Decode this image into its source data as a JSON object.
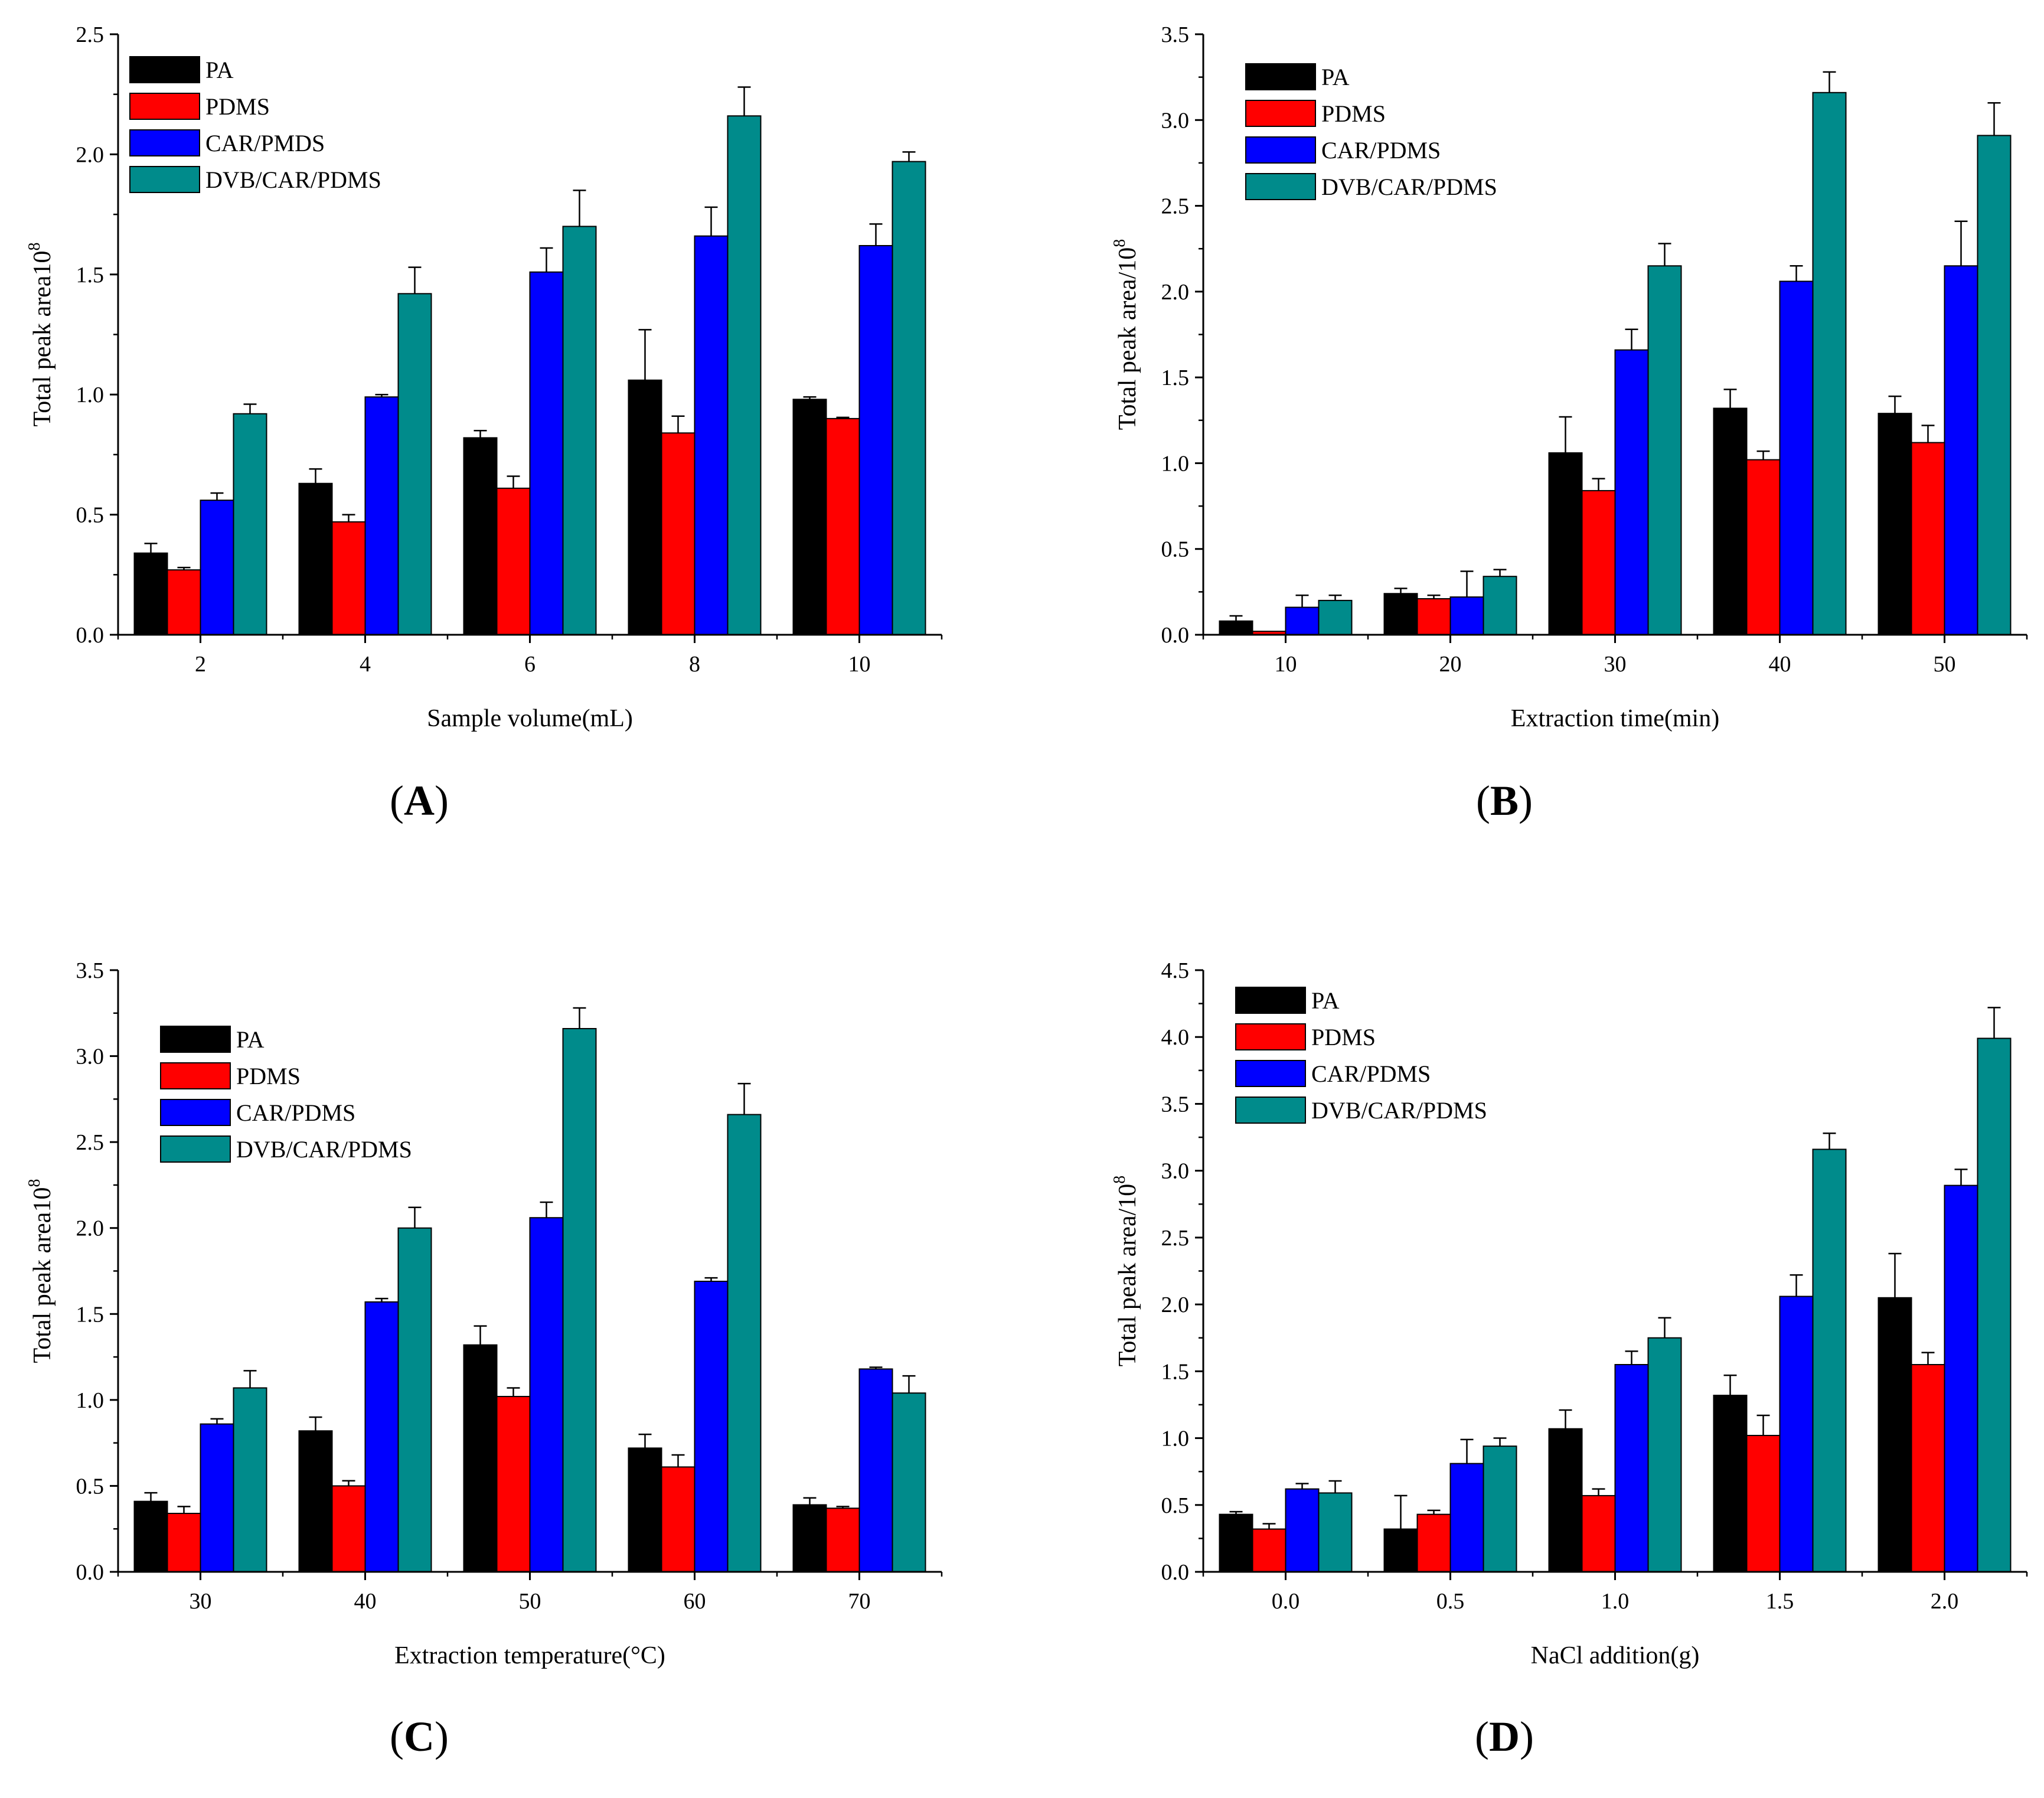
{
  "chart_data": [
    {
      "panel": "A",
      "type": "bar",
      "title": "",
      "xlabel": "Sample volume(mL)",
      "ylabel": "Total peak area10",
      "ylabel_exponent": "8",
      "ylim": [
        0,
        2.5
      ],
      "yticks": [
        "0.0",
        "0.5",
        "1.0",
        "1.5",
        "2.0",
        "2.5"
      ],
      "categories": [
        "2",
        "4",
        "6",
        "8",
        "10"
      ],
      "legend": "top-left",
      "series": [
        {
          "name": "PA",
          "color": "#000000",
          "values": [
            0.34,
            0.63,
            0.82,
            1.06,
            0.98
          ],
          "errors": [
            0.04,
            0.06,
            0.03,
            0.21,
            0.01
          ]
        },
        {
          "name": "PDMS",
          "color": "#ff0000",
          "values": [
            0.27,
            0.47,
            0.61,
            0.84,
            0.9
          ],
          "errors": [
            0.01,
            0.03,
            0.05,
            0.07,
            0.005
          ]
        },
        {
          "name": "CAR/PMDS",
          "color": "#0000ff",
          "values": [
            0.56,
            0.99,
            1.51,
            1.66,
            1.62
          ],
          "errors": [
            0.03,
            0.01,
            0.1,
            0.12,
            0.09
          ]
        },
        {
          "name": "DVB/CAR/PDMS",
          "color": "#008b8b",
          "values": [
            0.92,
            1.42,
            1.7,
            2.16,
            1.97
          ],
          "errors": [
            0.04,
            0.11,
            0.15,
            0.12,
            0.04
          ]
        }
      ]
    },
    {
      "panel": "B",
      "type": "bar",
      "title": "",
      "xlabel": "Extraction time(min)",
      "ylabel": "Total peak area/10",
      "ylabel_exponent": "8",
      "ylim": [
        0,
        3.5
      ],
      "yticks": [
        "0.0",
        "0.5",
        "1.0",
        "1.5",
        "2.0",
        "2.5",
        "3.0",
        "3.5"
      ],
      "categories": [
        "10",
        "20",
        "30",
        "40",
        "50"
      ],
      "legend": "top-left",
      "series": [
        {
          "name": "PA",
          "color": "#000000",
          "values": [
            0.08,
            0.24,
            1.06,
            1.32,
            1.29
          ],
          "errors": [
            0.03,
            0.03,
            0.21,
            0.11,
            0.1
          ]
        },
        {
          "name": "PDMS",
          "color": "#ff0000",
          "values": [
            0.02,
            0.21,
            0.84,
            1.02,
            1.12
          ],
          "errors": [
            0.0,
            0.02,
            0.07,
            0.05,
            0.1
          ]
        },
        {
          "name": "CAR/PDMS",
          "color": "#0000ff",
          "values": [
            0.16,
            0.22,
            1.66,
            2.06,
            2.15
          ],
          "errors": [
            0.07,
            0.15,
            0.12,
            0.09,
            0.26
          ]
        },
        {
          "name": "DVB/CAR/PDMS",
          "color": "#008b8b",
          "values": [
            0.2,
            0.34,
            2.15,
            3.16,
            2.91
          ],
          "errors": [
            0.03,
            0.04,
            0.13,
            0.12,
            0.19
          ]
        }
      ]
    },
    {
      "panel": "C",
      "type": "bar",
      "title": "",
      "xlabel": "Extraction temperature(°C)",
      "ylabel": "Total peak area10",
      "ylabel_exponent": "8",
      "ylim": [
        0,
        3.5
      ],
      "yticks": [
        "0.0",
        "0.5",
        "1.0",
        "1.5",
        "2.0",
        "2.5",
        "3.0",
        "3.5"
      ],
      "categories": [
        "30",
        "40",
        "50",
        "60",
        "70"
      ],
      "legend": "top-left",
      "series": [
        {
          "name": "PA",
          "color": "#000000",
          "values": [
            0.41,
            0.82,
            1.32,
            0.72,
            0.39
          ],
          "errors": [
            0.05,
            0.08,
            0.11,
            0.08,
            0.04
          ]
        },
        {
          "name": "PDMS",
          "color": "#ff0000",
          "values": [
            0.34,
            0.5,
            1.02,
            0.61,
            0.37
          ],
          "errors": [
            0.04,
            0.03,
            0.05,
            0.07,
            0.01
          ]
        },
        {
          "name": "CAR/PDMS",
          "color": "#0000ff",
          "values": [
            0.86,
            1.57,
            2.06,
            1.69,
            1.18
          ],
          "errors": [
            0.03,
            0.02,
            0.09,
            0.02,
            0.01
          ]
        },
        {
          "name": "DVB/CAR/PDMS",
          "color": "#008b8b",
          "values": [
            1.07,
            2.0,
            3.16,
            2.66,
            1.04
          ],
          "errors": [
            0.1,
            0.12,
            0.12,
            0.18,
            0.1
          ]
        }
      ]
    },
    {
      "panel": "D",
      "type": "bar",
      "title": "",
      "xlabel": "NaCl addition(g)",
      "ylabel": "Total peak area/10",
      "ylabel_exponent": "8",
      "ylim": [
        0,
        4.5
      ],
      "yticks": [
        "0.0",
        "0.5",
        "1.0",
        "1.5",
        "2.0",
        "2.5",
        "3.0",
        "3.5",
        "4.0",
        "4.5"
      ],
      "categories": [
        "0.0",
        "0.5",
        "1.0",
        "1.5",
        "2.0"
      ],
      "legend": "top-left",
      "series": [
        {
          "name": "PA",
          "color": "#000000",
          "values": [
            0.43,
            0.32,
            1.07,
            1.32,
            2.05
          ],
          "errors": [
            0.02,
            0.25,
            0.14,
            0.15,
            0.33
          ]
        },
        {
          "name": "PDMS",
          "color": "#ff0000",
          "values": [
            0.32,
            0.43,
            0.57,
            1.02,
            1.55
          ],
          "errors": [
            0.04,
            0.03,
            0.05,
            0.15,
            0.09
          ]
        },
        {
          "name": "CAR/PDMS",
          "color": "#0000ff",
          "values": [
            0.62,
            0.81,
            1.55,
            2.06,
            2.89
          ],
          "errors": [
            0.04,
            0.18,
            0.1,
            0.16,
            0.12
          ]
        },
        {
          "name": "DVB/CAR/PDMS",
          "color": "#008b8b",
          "values": [
            0.59,
            0.94,
            1.75,
            3.16,
            3.99
          ],
          "errors": [
            0.09,
            0.06,
            0.15,
            0.12,
            0.23
          ]
        }
      ]
    }
  ],
  "panel_labels": [
    {
      "open": "(",
      "letter": "A",
      "close": ")"
    },
    {
      "open": "(",
      "letter": "B",
      "close": ")"
    },
    {
      "open": "(",
      "letter": "C",
      "close": ")"
    },
    {
      "open": "(",
      "letter": "D",
      "close": ")"
    }
  ]
}
